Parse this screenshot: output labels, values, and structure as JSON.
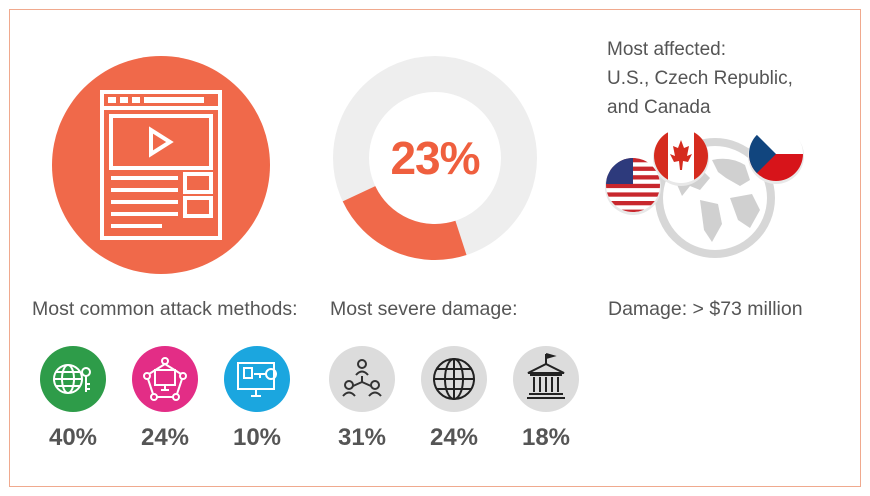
{
  "hero": {
    "icon": "web-page-video-icon",
    "color": "#f0694a"
  },
  "donut": {
    "value_label": "23%",
    "fraction": 0.23,
    "accent": "#f0694a",
    "track": "#eeeeee"
  },
  "affected": {
    "lines": [
      "Most affected:",
      "U.S., Czech Republic,",
      "and Canada"
    ],
    "flags": [
      "us-flag-icon",
      "canada-flag-icon",
      "czech-flag-icon"
    ],
    "globe_icon": "globe-icon"
  },
  "attack_methods": {
    "label": "Most common attack methods:",
    "items": [
      {
        "icon": "globe-key-icon",
        "color": "#2e9c49",
        "pct": "40%"
      },
      {
        "icon": "network-monitor-icon",
        "color": "#e32d86",
        "pct": "24%"
      },
      {
        "icon": "computer-key-icon",
        "color": "#1ba6df",
        "pct": "10%"
      }
    ]
  },
  "damage": {
    "label": "Most severe damage:",
    "items": [
      {
        "icon": "people-network-icon",
        "color": "#dcdcdc",
        "pct": "31%"
      },
      {
        "icon": "globe-icon",
        "color": "#dcdcdc",
        "pct": "24%"
      },
      {
        "icon": "government-building-icon",
        "color": "#dcdcdc",
        "pct": "18%"
      }
    ]
  },
  "damage_total": {
    "label": "Damage: > $73 million"
  }
}
